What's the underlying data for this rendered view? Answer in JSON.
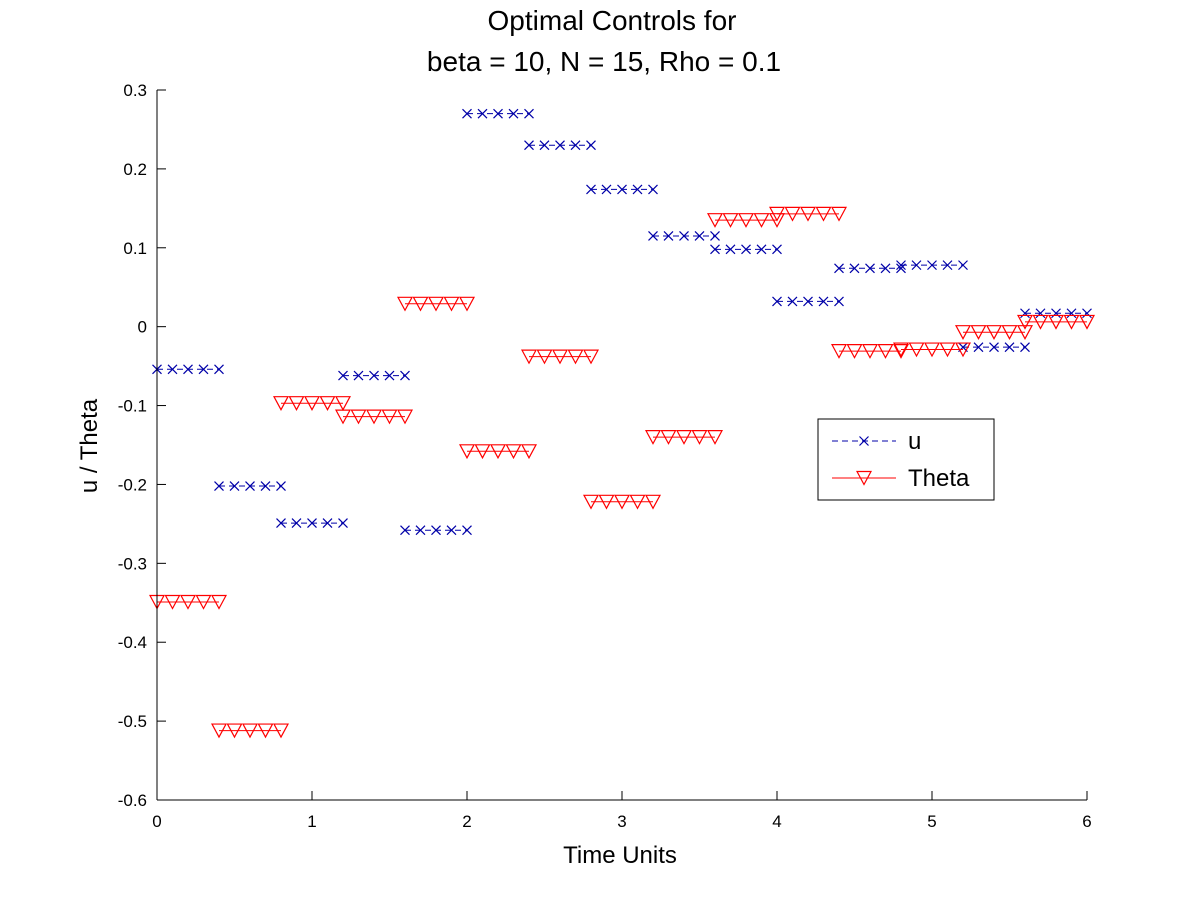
{
  "chart_data": {
    "type": "line",
    "title_lines": [
      "Optimal Controls for",
      "beta = 10, N = 15, Rho = 0.1"
    ],
    "xlabel": "Time Units",
    "ylabel": "u / Theta",
    "xlim": [
      0,
      6
    ],
    "ylim": [
      -0.6,
      0.3
    ],
    "x_ticks": [
      "0",
      "1",
      "2",
      "3",
      "4",
      "5",
      "6"
    ],
    "y_ticks": [
      "-0.6",
      "-0.5",
      "-0.4",
      "-0.3",
      "-0.2",
      "-0.1",
      "0",
      "0.1",
      "0.2",
      "0.3"
    ],
    "grid": false,
    "legend_position": "center-right",
    "samples_per_interval": 5,
    "series": [
      {
        "name": "u",
        "color": "#0000a8",
        "marker": "x",
        "line_style": "dashed",
        "segments": [
          {
            "x_start": 0.0,
            "x_end": 0.4,
            "value": -0.054
          },
          {
            "x_start": 0.4,
            "x_end": 0.8,
            "value": -0.202
          },
          {
            "x_start": 0.8,
            "x_end": 1.2,
            "value": -0.249
          },
          {
            "x_start": 1.2,
            "x_end": 1.6,
            "value": -0.062
          },
          {
            "x_start": 1.6,
            "x_end": 2.0,
            "value": -0.258
          },
          {
            "x_start": 2.0,
            "x_end": 2.4,
            "value": 0.27
          },
          {
            "x_start": 2.4,
            "x_end": 2.8,
            "value": 0.23
          },
          {
            "x_start": 2.8,
            "x_end": 3.2,
            "value": 0.174
          },
          {
            "x_start": 3.2,
            "x_end": 3.6,
            "value": 0.115
          },
          {
            "x_start": 3.6,
            "x_end": 4.0,
            "value": 0.098
          },
          {
            "x_start": 4.0,
            "x_end": 4.4,
            "value": 0.032
          },
          {
            "x_start": 4.4,
            "x_end": 4.8,
            "value": 0.074
          },
          {
            "x_start": 4.8,
            "x_end": 5.2,
            "value": 0.078
          },
          {
            "x_start": 5.2,
            "x_end": 5.6,
            "value": -0.026
          },
          {
            "x_start": 5.6,
            "x_end": 6.0,
            "value": 0.017
          }
        ]
      },
      {
        "name": "Theta",
        "color": "#ff0000",
        "marker": "triangle-down",
        "line_style": "solid",
        "segments": [
          {
            "x_start": 0.0,
            "x_end": 0.4,
            "value": -0.349
          },
          {
            "x_start": 0.4,
            "x_end": 0.8,
            "value": -0.512
          },
          {
            "x_start": 0.8,
            "x_end": 1.2,
            "value": -0.097
          },
          {
            "x_start": 1.2,
            "x_end": 1.6,
            "value": -0.114
          },
          {
            "x_start": 1.6,
            "x_end": 2.0,
            "value": 0.029
          },
          {
            "x_start": 2.0,
            "x_end": 2.4,
            "value": -0.158
          },
          {
            "x_start": 2.4,
            "x_end": 2.8,
            "value": -0.038
          },
          {
            "x_start": 2.8,
            "x_end": 3.2,
            "value": -0.222
          },
          {
            "x_start": 3.2,
            "x_end": 3.6,
            "value": -0.14
          },
          {
            "x_start": 3.6,
            "x_end": 4.0,
            "value": 0.135
          },
          {
            "x_start": 4.0,
            "x_end": 4.4,
            "value": 0.143
          },
          {
            "x_start": 4.4,
            "x_end": 4.8,
            "value": -0.031
          },
          {
            "x_start": 4.8,
            "x_end": 5.2,
            "value": -0.029
          },
          {
            "x_start": 5.2,
            "x_end": 5.6,
            "value": -0.007
          },
          {
            "x_start": 5.6,
            "x_end": 6.0,
            "value": 0.006
          }
        ]
      }
    ]
  }
}
